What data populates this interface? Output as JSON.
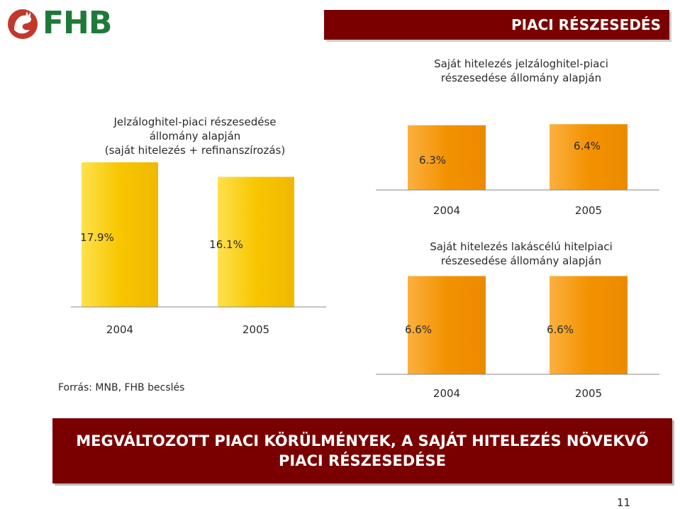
{
  "header": {
    "title": "PIACI RÉSZESEDÉS"
  },
  "logo": {
    "text": "FHB"
  },
  "chart_data": [
    {
      "type": "bar",
      "title": "Jelzáloghitel-piaci részesedése állomány alapján (saját hitelezés + refinanszírozás)",
      "title_lines": [
        "Jelzáloghitel-piaci részesedése",
        "állomány alapján",
        "(saját hitelezés + refinanszírozás)"
      ],
      "categories": [
        "2004",
        "2005"
      ],
      "values": [
        17.9,
        16.1
      ],
      "labels": [
        "17.9%",
        "16.1%"
      ],
      "unit": "%",
      "color": "#f5c400"
    },
    {
      "type": "bar",
      "title": "Saját hitelezés jelzáloghitel-piaci részesedése állomány alapján",
      "title_lines": [
        "Saját hitelezés jelzáloghitel-piaci",
        "részesedése állomány alapján"
      ],
      "categories": [
        "2004",
        "2005"
      ],
      "values": [
        6.3,
        6.4
      ],
      "labels": [
        "6.3%",
        "6.4%"
      ],
      "unit": "%",
      "color": "#f39200"
    },
    {
      "type": "bar",
      "title": "Saját hitelezés lakáscélú hitelpiaci részesedése állomány alapján",
      "title_lines": [
        "Saját hitelezés lakáscélú hitelpiaci",
        "részesedése állomány alapján"
      ],
      "categories": [
        "2004",
        "2005"
      ],
      "values": [
        6.6,
        6.6
      ],
      "labels": [
        "6.6%",
        "6.6%"
      ],
      "unit": "%",
      "color": "#f39200"
    }
  ],
  "source_note": "Forrás: MNB, FHB becslés",
  "banner": {
    "line1": "MEGVÁLTOZOTT PIACI KÖRÜLMÉNYEK, A SAJÁT HITELEZÉS NÖVEKVŐ",
    "line2": "PIACI RÉSZESEDÉSE"
  },
  "page_number": "11"
}
